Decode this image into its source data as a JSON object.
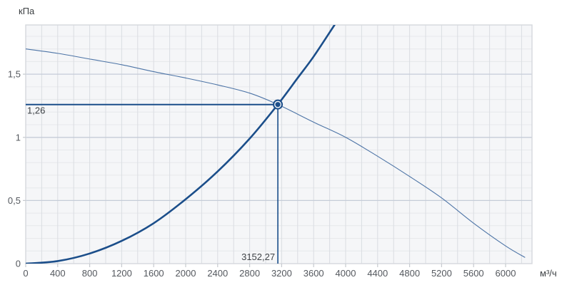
{
  "chart_data": {
    "type": "line",
    "title": "",
    "x_axis": {
      "unit": "м³/ч",
      "lim": [
        0,
        6330
      ],
      "minor_step": 200,
      "ticks": [
        0,
        400,
        800,
        1200,
        1600,
        2000,
        2400,
        2800,
        3200,
        3600,
        4000,
        4400,
        4800,
        5200,
        5600,
        6000
      ]
    },
    "y_axis": {
      "unit": "кПа",
      "lim": [
        0,
        1.89
      ],
      "minor_step": 0.1,
      "major_lines": [
        0.5,
        1.0,
        1.5
      ],
      "ticks": [
        {
          "v": 0,
          "label": "0"
        },
        {
          "v": 0.5,
          "label": "0,5"
        },
        {
          "v": 1,
          "label": "1"
        },
        {
          "v": 1.5,
          "label": "1,5"
        }
      ]
    },
    "series": [
      {
        "name": "fan-curve",
        "style": "thin",
        "points": [
          [
            0,
            1.7
          ],
          [
            400,
            1.665
          ],
          [
            800,
            1.62
          ],
          [
            1200,
            1.575
          ],
          [
            1600,
            1.52
          ],
          [
            2000,
            1.47
          ],
          [
            2400,
            1.415
          ],
          [
            2800,
            1.35
          ],
          [
            3152.27,
            1.26
          ],
          [
            3600,
            1.12
          ],
          [
            4000,
            1.0
          ],
          [
            4400,
            0.85
          ],
          [
            4800,
            0.69
          ],
          [
            5200,
            0.52
          ],
          [
            5600,
            0.32
          ],
          [
            6000,
            0.14
          ],
          [
            6240,
            0.05
          ]
        ]
      },
      {
        "name": "system-curve",
        "style": "thick",
        "points": [
          [
            0,
            0
          ],
          [
            400,
            0.02
          ],
          [
            800,
            0.08
          ],
          [
            1200,
            0.18
          ],
          [
            1600,
            0.32
          ],
          [
            2000,
            0.51
          ],
          [
            2400,
            0.73
          ],
          [
            2800,
            0.99
          ],
          [
            3152.27,
            1.26
          ],
          [
            3400,
            1.47
          ],
          [
            3600,
            1.64
          ],
          [
            3861,
            1.89
          ]
        ]
      }
    ],
    "operating_point": {
      "x": 3152.27,
      "y": 1.26,
      "x_label": "3152,27",
      "y_label": "1,26"
    },
    "legend": false,
    "grid": true,
    "colors": {
      "accent_navy": "#1b4e8a",
      "thin_curve": "#4d74a6",
      "plot_bg": "#f5f6f8",
      "grid_minor_h": "#e6e8eb",
      "grid_minor_v": "#dadde2",
      "grid_major_h": "#c5ccd8",
      "border": "#d5d8dd",
      "tick_mark": "#c6cacf",
      "tick_text": "#54585e",
      "point_label_text": "#3f4347",
      "marker_ring": "#f3f5f8"
    }
  }
}
